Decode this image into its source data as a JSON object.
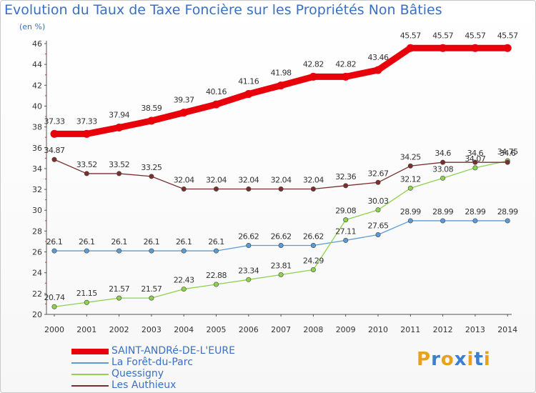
{
  "title": "Evolution du Taux de Taxe Foncière sur les Propriétés Non Bâties",
  "unit": "(en %)",
  "logo": {
    "text": "Proxiti",
    "letters": [
      "P",
      "r",
      "o",
      "x",
      "i",
      "t",
      "i"
    ],
    "colors": [
      "#e8a21a",
      "#3a7fd0",
      "#e8a21a",
      "#3a7fd0",
      "#e8a21a",
      "#3a7fd0",
      "#e8a21a"
    ]
  },
  "chart_data": {
    "type": "line",
    "title": "Evolution du Taux de Taxe Foncière sur les Propriétés Non Bâties",
    "ylabel": "(en %)",
    "xlabel": "",
    "x": [
      "2000",
      "2001",
      "2002",
      "2003",
      "2004",
      "2005",
      "2006",
      "2007",
      "2008",
      "2009",
      "2010",
      "2011",
      "2012",
      "2013",
      "2014"
    ],
    "ylim": [
      20,
      46
    ],
    "yticks": [
      "20",
      "22",
      "24",
      "26",
      "28",
      "30",
      "32",
      "34",
      "36",
      "38",
      "40",
      "42",
      "44",
      "46"
    ],
    "grid": false,
    "legend_position": "bottom-left",
    "series": [
      {
        "name": "SAINT-ANDRé-DE-L'EURE",
        "color": "#e8000b",
        "values": [
          37.33,
          37.33,
          37.94,
          38.59,
          39.37,
          40.16,
          41.16,
          41.98,
          42.82,
          42.82,
          43.46,
          45.57,
          45.57,
          45.57,
          45.57
        ],
        "labels": [
          "37.33",
          "37.33",
          "37.94",
          "38.59",
          "39.37",
          "40.16",
          "41.16",
          "41.98",
          "42.82",
          "42.82",
          "43.46",
          "45.57",
          "45.57",
          "45.57",
          "45.57"
        ]
      },
      {
        "name": "La Forêt-du-Parc",
        "color": "#5b9bd5",
        "values": [
          26.1,
          26.1,
          26.1,
          26.1,
          26.1,
          26.1,
          26.62,
          26.62,
          26.62,
          27.11,
          27.65,
          28.99,
          28.99,
          28.99,
          28.99
        ],
        "labels": [
          "26.1",
          "26.1",
          "26.1",
          "26.1",
          "26.1",
          "26.1",
          "26.62",
          "26.62",
          "26.62",
          "27.11",
          "27.65",
          "28.99",
          "28.99",
          "28.99",
          "28.99"
        ]
      },
      {
        "name": "Quessigny",
        "color": "#8fd14f",
        "values": [
          20.74,
          21.15,
          21.57,
          21.57,
          22.43,
          22.88,
          23.34,
          23.81,
          24.29,
          29.08,
          30.03,
          32.12,
          33.08,
          34.07,
          34.75
        ],
        "labels": [
          "20.74",
          "21.15",
          "21.57",
          "21.57",
          "22.43",
          "22.88",
          "23.34",
          "23.81",
          "24.29",
          "29.08",
          "30.03",
          "32.12",
          "33.08",
          "34.07",
          "34.75"
        ]
      },
      {
        "name": "Les Authieux",
        "color": "#7b2e2e",
        "values": [
          34.87,
          33.52,
          33.52,
          33.25,
          32.04,
          32.04,
          32.04,
          32.04,
          32.04,
          32.36,
          32.67,
          34.25,
          34.6,
          34.6,
          34.6
        ],
        "labels": [
          "34.87",
          "33.52",
          "33.52",
          "33.25",
          "32.04",
          "32.04",
          "32.04",
          "32.04",
          "32.04",
          "32.36",
          "32.67",
          "34.25",
          "34.6",
          "34.6",
          "34.6"
        ]
      }
    ]
  }
}
